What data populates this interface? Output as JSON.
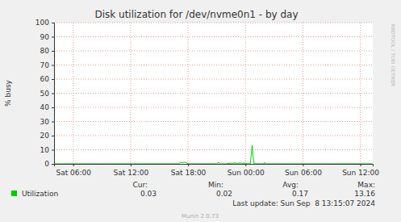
{
  "chart_data": {
    "type": "line",
    "title": "Disk utilization for /dev/nvme0n1 - by day",
    "ylabel": "% busy",
    "x": [
      4,
      5,
      6,
      7,
      8,
      9,
      10,
      11,
      12,
      13,
      14,
      15,
      16,
      17,
      17.2,
      17.4,
      17.6,
      17.8,
      18,
      18.2,
      19,
      20,
      21,
      21.2,
      21.4,
      21.6,
      22,
      22.4,
      22.6,
      22.8,
      23,
      23.2,
      23.4,
      23.6,
      23.8,
      24,
      24.2,
      24.5,
      24.6,
      24.7,
      24.8,
      24.9,
      25.5,
      25.9,
      26,
      26.1,
      27,
      28,
      29,
      30,
      31,
      32,
      33,
      34,
      35,
      36,
      37,
      37.25
    ],
    "series": [
      {
        "name": "Utilization",
        "color": "#00cc00",
        "values": [
          0.03,
          0.03,
          0.02,
          0.03,
          0.03,
          0.02,
          0.03,
          0.03,
          0.03,
          0.02,
          0.03,
          0.03,
          0.03,
          0.03,
          1.1,
          0.9,
          1.2,
          0.8,
          0.03,
          0.03,
          0.03,
          0.02,
          0.03,
          1.0,
          0.03,
          0.03,
          0.03,
          0.5,
          0.4,
          0.6,
          0.5,
          0.4,
          0.6,
          0.5,
          0.4,
          0.6,
          0.03,
          0.03,
          6.0,
          13.16,
          5.0,
          0.03,
          0.03,
          0.03,
          1.0,
          0.03,
          0.03,
          0.02,
          0.03,
          0.03,
          0.03,
          0.03,
          0.02,
          0.03,
          0.03,
          0.03,
          0.03,
          0.03
        ]
      }
    ],
    "xlim": [
      4,
      37.3
    ],
    "xticks": [
      {
        "value": 6,
        "label": "Sat 06:00"
      },
      {
        "value": 12,
        "label": "Sat 12:00"
      },
      {
        "value": 18,
        "label": "Sat 18:00"
      },
      {
        "value": 24,
        "label": "Sun 00:00"
      },
      {
        "value": 30,
        "label": "Sun 06:00"
      },
      {
        "value": 36,
        "label": "Sun 12:00"
      }
    ],
    "ylim": [
      0,
      100
    ],
    "yticks": [
      0,
      10,
      20,
      30,
      40,
      50,
      60,
      70,
      80,
      90,
      100
    ],
    "grid": true,
    "summary": {
      "headers": [
        "Cur:",
        "Min:",
        "Avg:",
        "Max:"
      ],
      "values": [
        0.03,
        0.02,
        0.17,
        13.16
      ]
    },
    "annotations": [
      "Last update: Sun Sep  8 13:15:07 2024",
      "Munin 2.0.73",
      "RRDTOOL / TOBI OETIKER"
    ]
  }
}
